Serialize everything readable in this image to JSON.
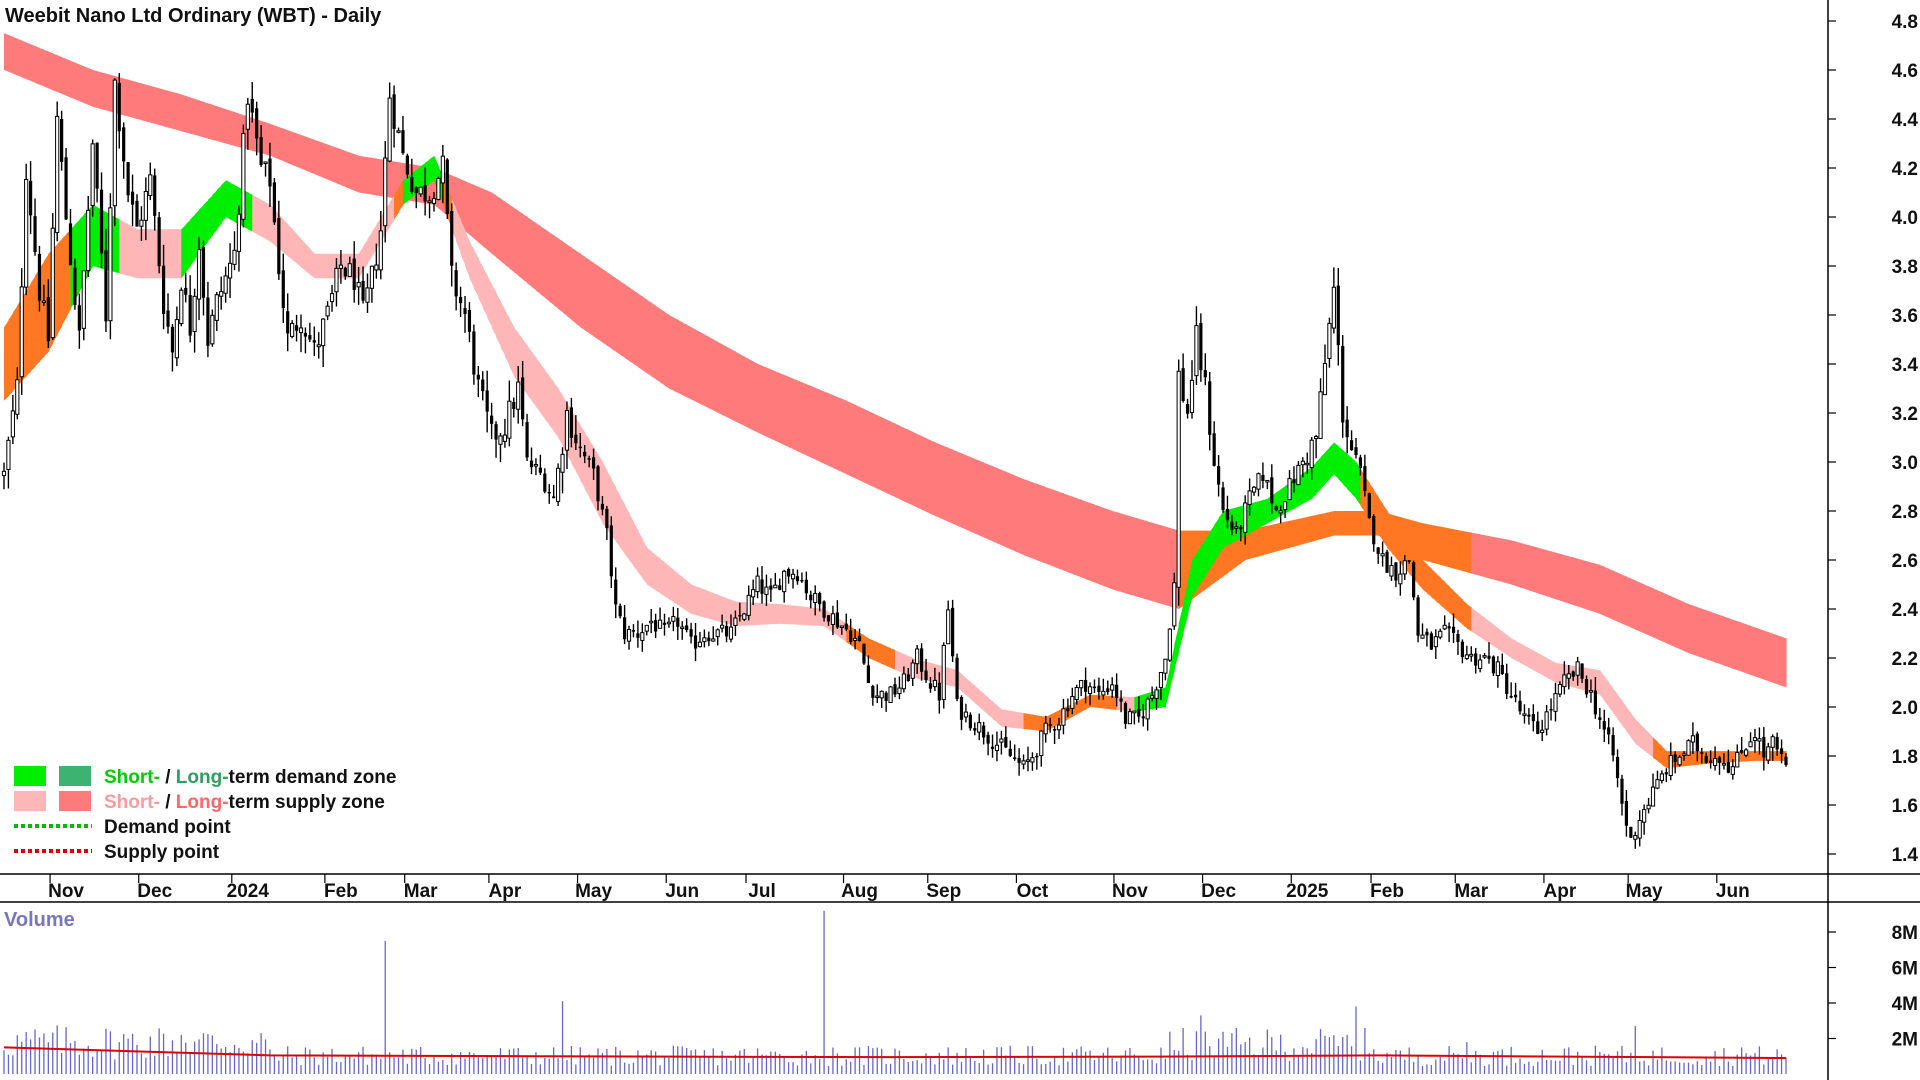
{
  "colors": {
    "short_demand": "#00ee00",
    "long_demand": "#3cb371",
    "short_supply": "#ffb6b6",
    "long_supply": "#ff7a7a",
    "transition_zone": "#ff7722",
    "demand_point": "#00bb00",
    "supply_point": "#dd0000",
    "candle": "#000000",
    "volume_bar": "#6666cc",
    "volume_ma": "#dd0000",
    "volume_label": "#7777bb"
  },
  "chart_data": [
    {
      "type": "candlestick",
      "title": "Weebit Nano Ltd Ordinary (WBT) - Daily",
      "ylim": [
        1.3,
        4.9
      ],
      "y_ticks": [
        "1.4",
        "1.6",
        "1.8",
        "2.0",
        "2.2",
        "2.4",
        "2.6",
        "2.8",
        "3.0",
        "3.2",
        "3.4",
        "3.6",
        "3.8",
        "4.0",
        "4.2",
        "4.4",
        "4.6",
        "4.8"
      ],
      "x_ticks": [
        "Nov",
        "Dec",
        "2024",
        "Feb",
        "Mar",
        "Apr",
        "May",
        "Jun",
        "Jul",
        "Aug",
        "Sep",
        "Oct",
        "Nov",
        "Dec",
        "2025",
        "Feb",
        "Mar",
        "Apr",
        "May",
        "Jun"
      ],
      "legend_location": "bottom-left",
      "legend": {
        "demand_zone": {
          "short": "Short-",
          "sep": " / ",
          "long": "Long-",
          "rest": "term demand zone"
        },
        "supply_zone": {
          "short": "Short-",
          "sep": " / ",
          "long": "Long-",
          "rest": "term supply zone"
        },
        "demand_point": "Demand point",
        "supply_point": "Supply point"
      },
      "price_path": [
        [
          0,
          2.95
        ],
        [
          3,
          3.3
        ],
        [
          5,
          4.2
        ],
        [
          8,
          3.7
        ],
        [
          10,
          3.5
        ],
        [
          12,
          4.4
        ],
        [
          14,
          4.0
        ],
        [
          17,
          3.5
        ],
        [
          20,
          4.3
        ],
        [
          23,
          3.6
        ],
        [
          25,
          4.55
        ],
        [
          28,
          4.1
        ],
        [
          30,
          3.95
        ],
        [
          33,
          4.15
        ],
        [
          36,
          3.65
        ],
        [
          38,
          3.45
        ],
        [
          40,
          3.75
        ],
        [
          42,
          3.55
        ],
        [
          44,
          3.9
        ],
        [
          46,
          3.5
        ],
        [
          48,
          3.65
        ],
        [
          50,
          3.75
        ],
        [
          52,
          3.85
        ],
        [
          55,
          4.5
        ],
        [
          58,
          4.2
        ],
        [
          60,
          4.15
        ],
        [
          62,
          3.8
        ],
        [
          64,
          3.5
        ],
        [
          67,
          3.6
        ],
        [
          70,
          3.45
        ],
        [
          73,
          3.6
        ],
        [
          76,
          3.8
        ],
        [
          79,
          3.75
        ],
        [
          81,
          3.6
        ],
        [
          83,
          3.75
        ],
        [
          85,
          3.95
        ],
        [
          87,
          4.5
        ],
        [
          90,
          4.25
        ],
        [
          93,
          4.1
        ],
        [
          96,
          4.1
        ],
        [
          99,
          4.2
        ],
        [
          101,
          3.75
        ],
        [
          104,
          3.6
        ],
        [
          107,
          3.3
        ],
        [
          110,
          3.1
        ],
        [
          113,
          3.15
        ],
        [
          116,
          3.3
        ],
        [
          118,
          3.0
        ],
        [
          121,
          2.95
        ],
        [
          124,
          2.85
        ],
        [
          127,
          3.2
        ],
        [
          130,
          3.05
        ],
        [
          133,
          2.95
        ],
        [
          136,
          2.7
        ],
        [
          138,
          2.4
        ],
        [
          140,
          2.3
        ],
        [
          143,
          2.3
        ],
        [
          146,
          2.35
        ],
        [
          149,
          2.3
        ],
        [
          152,
          2.35
        ],
        [
          155,
          2.25
        ],
        [
          158,
          2.3
        ],
        [
          161,
          2.3
        ],
        [
          164,
          2.3
        ],
        [
          167,
          2.4
        ],
        [
          170,
          2.5
        ],
        [
          173,
          2.45
        ],
        [
          176,
          2.55
        ],
        [
          179,
          2.55
        ],
        [
          182,
          2.45
        ],
        [
          185,
          2.4
        ],
        [
          188,
          2.35
        ],
        [
          191,
          2.3
        ],
        [
          193,
          2.25
        ],
        [
          195,
          2.1
        ],
        [
          197,
          2.05
        ],
        [
          200,
          2.05
        ],
        [
          203,
          2.1
        ],
        [
          206,
          2.2
        ],
        [
          209,
          2.1
        ],
        [
          211,
          2.05
        ],
        [
          213,
          2.4
        ],
        [
          215,
          2.0
        ],
        [
          218,
          1.95
        ],
        [
          221,
          1.9
        ],
        [
          224,
          1.85
        ],
        [
          227,
          1.8
        ],
        [
          230,
          1.75
        ],
        [
          232,
          1.8
        ],
        [
          235,
          1.9
        ],
        [
          238,
          1.95
        ],
        [
          241,
          2.05
        ],
        [
          244,
          2.1
        ],
        [
          247,
          2.05
        ],
        [
          250,
          2.1
        ],
        [
          253,
          1.95
        ],
        [
          256,
          1.95
        ],
        [
          259,
          2.05
        ],
        [
          262,
          2.2
        ],
        [
          264,
          2.5
        ],
        [
          265,
          3.35
        ],
        [
          267,
          3.2
        ],
        [
          269,
          3.5
        ],
        [
          271,
          3.3
        ],
        [
          273,
          3.0
        ],
        [
          275,
          2.8
        ],
        [
          278,
          2.7
        ],
        [
          281,
          2.85
        ],
        [
          284,
          2.95
        ],
        [
          287,
          2.8
        ],
        [
          290,
          2.9
        ],
        [
          293,
          3.0
        ],
        [
          296,
          3.1
        ],
        [
          298,
          3.4
        ],
        [
          300,
          3.7
        ],
        [
          302,
          3.2
        ],
        [
          304,
          3.05
        ],
        [
          306,
          2.95
        ],
        [
          308,
          2.75
        ],
        [
          311,
          2.6
        ],
        [
          314,
          2.55
        ],
        [
          317,
          2.6
        ],
        [
          319,
          2.3
        ],
        [
          322,
          2.25
        ],
        [
          325,
          2.3
        ],
        [
          328,
          2.25
        ],
        [
          331,
          2.2
        ],
        [
          334,
          2.2
        ],
        [
          337,
          2.15
        ],
        [
          340,
          2.05
        ],
        [
          343,
          1.95
        ],
        [
          346,
          1.9
        ],
        [
          349,
          2.0
        ],
        [
          352,
          2.1
        ],
        [
          355,
          2.15
        ],
        [
          358,
          2.05
        ],
        [
          361,
          1.9
        ],
        [
          363,
          1.8
        ],
        [
          365,
          1.6
        ],
        [
          367,
          1.45
        ],
        [
          369,
          1.55
        ],
        [
          372,
          1.65
        ],
        [
          375,
          1.75
        ],
        [
          378,
          1.8
        ],
        [
          381,
          1.85
        ],
        [
          384,
          1.8
        ],
        [
          387,
          1.8
        ],
        [
          390,
          1.75
        ],
        [
          393,
          1.85
        ],
        [
          395,
          1.9
        ],
        [
          397,
          1.8
        ],
        [
          399,
          1.85
        ],
        [
          402,
          1.75
        ]
      ],
      "short_zone_path": [
        [
          0,
          3.25,
          3.55
        ],
        [
          10,
          3.45,
          3.85
        ],
        [
          20,
          3.8,
          4.05
        ],
        [
          30,
          3.75,
          3.95
        ],
        [
          40,
          3.75,
          3.95
        ],
        [
          50,
          4.0,
          4.15
        ],
        [
          60,
          3.9,
          4.05
        ],
        [
          70,
          3.75,
          3.85
        ],
        [
          80,
          3.75,
          3.85
        ],
        [
          90,
          4.05,
          4.15
        ],
        [
          97,
          4.15,
          4.25
        ],
        [
          105,
          3.75,
          3.9
        ],
        [
          115,
          3.35,
          3.55
        ],
        [
          125,
          3.1,
          3.3
        ],
        [
          135,
          2.75,
          3.0
        ],
        [
          145,
          2.5,
          2.65
        ],
        [
          155,
          2.38,
          2.5
        ],
        [
          165,
          2.33,
          2.43
        ],
        [
          175,
          2.34,
          2.42
        ],
        [
          185,
          2.33,
          2.4
        ],
        [
          195,
          2.2,
          2.28
        ],
        [
          205,
          2.12,
          2.2
        ],
        [
          215,
          2.08,
          2.15
        ],
        [
          225,
          1.92,
          1.99
        ],
        [
          235,
          1.9,
          1.96
        ],
        [
          245,
          2.0,
          2.05
        ],
        [
          255,
          1.98,
          2.04
        ],
        [
          262,
          2.0,
          2.08
        ],
        [
          268,
          2.45,
          2.6
        ],
        [
          275,
          2.65,
          2.8
        ],
        [
          285,
          2.75,
          2.85
        ],
        [
          295,
          2.85,
          2.98
        ],
        [
          300,
          2.95,
          3.08
        ],
        [
          305,
          2.85,
          3.0
        ],
        [
          312,
          2.65,
          2.8
        ],
        [
          320,
          2.48,
          2.6
        ],
        [
          330,
          2.32,
          2.42
        ],
        [
          340,
          2.2,
          2.28
        ],
        [
          350,
          2.1,
          2.18
        ],
        [
          360,
          2.05,
          2.15
        ],
        [
          368,
          1.85,
          1.95
        ],
        [
          375,
          1.75,
          1.82
        ],
        [
          385,
          1.77,
          1.82
        ],
        [
          395,
          1.78,
          1.82
        ],
        [
          402,
          1.78,
          1.82
        ]
      ],
      "long_zone_path": [
        [
          0,
          4.6,
          4.75
        ],
        [
          20,
          4.45,
          4.6
        ],
        [
          40,
          4.35,
          4.5
        ],
        [
          60,
          4.25,
          4.38
        ],
        [
          80,
          4.1,
          4.25
        ],
        [
          97,
          4.05,
          4.2
        ],
        [
          110,
          3.85,
          4.1
        ],
        [
          130,
          3.55,
          3.85
        ],
        [
          150,
          3.3,
          3.6
        ],
        [
          170,
          3.12,
          3.4
        ],
        [
          190,
          2.95,
          3.25
        ],
        [
          210,
          2.78,
          3.08
        ],
        [
          230,
          2.62,
          2.93
        ],
        [
          250,
          2.48,
          2.8
        ],
        [
          265,
          2.4,
          2.72
        ],
        [
          280,
          2.6,
          2.72
        ],
        [
          300,
          2.7,
          2.8
        ],
        [
          310,
          2.7,
          2.8
        ],
        [
          320,
          2.6,
          2.75
        ],
        [
          340,
          2.5,
          2.68
        ],
        [
          360,
          2.38,
          2.58
        ],
        [
          380,
          2.22,
          2.42
        ],
        [
          402,
          2.08,
          2.28
        ]
      ],
      "transition_ranges": [
        [
          0,
          20
        ],
        [
          88,
          100
        ],
        [
          190,
          200
        ],
        [
          230,
          250
        ],
        [
          265,
          330
        ],
        [
          372,
          402
        ]
      ],
      "demand_ranges": [
        [
          15,
          25
        ],
        [
          40,
          55
        ],
        [
          90,
          98
        ],
        [
          255,
          305
        ]
      ]
    },
    {
      "type": "bar",
      "title": "Volume",
      "ylim": [
        0,
        9000000
      ],
      "y_ticks": [
        "2M",
        "4M",
        "6M",
        "8M"
      ],
      "spikes": [
        [
          40,
          2200000
        ],
        [
          86,
          7500000
        ],
        [
          126,
          4100000
        ],
        [
          185,
          9200000
        ],
        [
          270,
          3300000
        ],
        [
          305,
          3800000
        ],
        [
          330,
          1800000
        ],
        [
          368,
          2700000
        ],
        [
          392,
          1500000
        ]
      ],
      "typical_volume": [
        1600000,
        900000
      ],
      "moving_average": [
        [
          0,
          1500000
        ],
        [
          60,
          1050000
        ],
        [
          120,
          1000000
        ],
        [
          200,
          950000
        ],
        [
          260,
          980000
        ],
        [
          310,
          1050000
        ],
        [
          402,
          900000
        ]
      ]
    }
  ]
}
